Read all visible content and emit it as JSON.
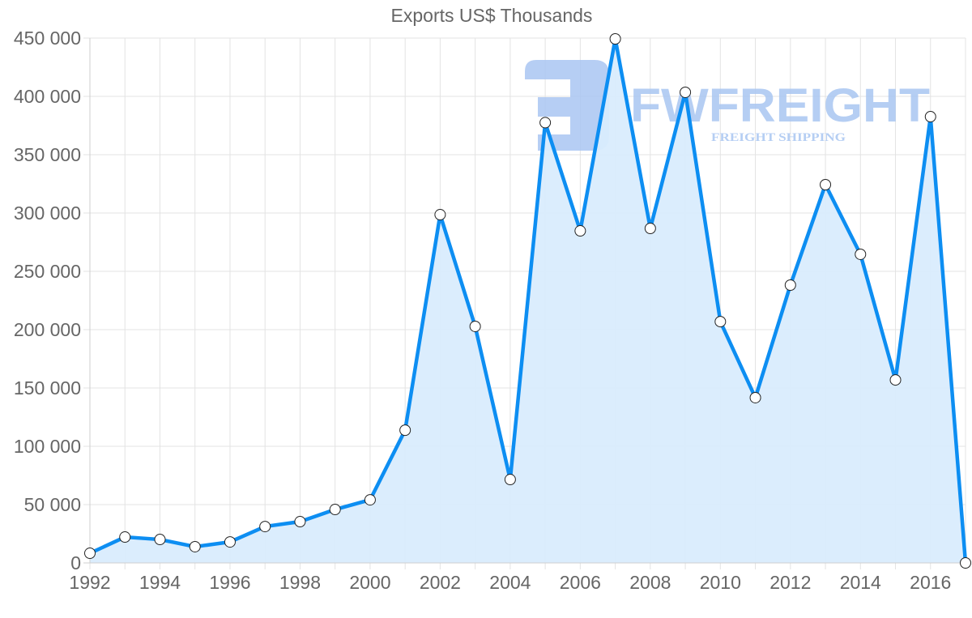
{
  "chart_data": {
    "type": "area",
    "title": "Exports US$ Thousands",
    "xlabel": "",
    "ylabel": "",
    "x": [
      1992,
      1993,
      1994,
      1995,
      1996,
      1997,
      1998,
      1999,
      2000,
      2001,
      2002,
      2003,
      2004,
      2005,
      2006,
      2007,
      2008,
      2009,
      2010,
      2011,
      2012,
      2013,
      2014,
      2015,
      2016,
      2017
    ],
    "series": [
      {
        "name": "Exports US$ Thousands",
        "values": [
          8300,
          22200,
          20100,
          13900,
          18000,
          31200,
          35400,
          45800,
          54100,
          113800,
          298600,
          202800,
          71500,
          377500,
          284700,
          449300,
          286800,
          403500,
          206900,
          141700,
          238200,
          324300,
          264600,
          156900,
          382600,
          0
        ],
        "line_color": "#0d8ef2",
        "fill_color": "#d9ecfd"
      }
    ],
    "x_tick_labels": [
      "1992",
      "1994",
      "1996",
      "1998",
      "2000",
      "2002",
      "2004",
      "2006",
      "2008",
      "2010",
      "2012",
      "2014",
      "2016"
    ],
    "y_tick_labels": [
      "0",
      "50 000",
      "100 000",
      "150 000",
      "200 000",
      "250 000",
      "300 000",
      "350 000",
      "400 000",
      "450 000"
    ],
    "y_ticks": [
      0,
      50000,
      100000,
      150000,
      200000,
      250000,
      300000,
      350000,
      400000,
      450000
    ],
    "xlim": [
      1992,
      2017
    ],
    "ylim": [
      0,
      450000
    ],
    "grid": true,
    "legend": "none",
    "markers": "white circles with dark outline"
  },
  "watermark": {
    "brand": "FWFREIGHT",
    "tagline": "FREIGHT SHIPPING",
    "color": "#a9c6f2"
  }
}
